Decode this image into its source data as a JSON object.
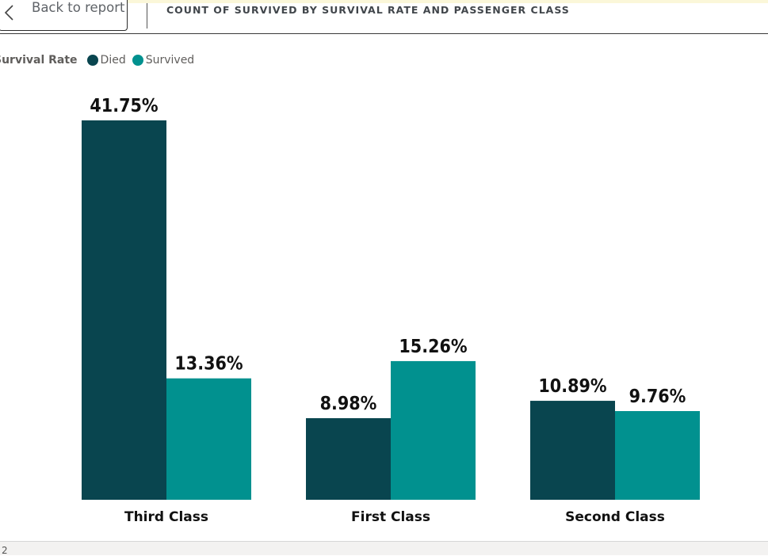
{
  "header": {
    "back_label": "Back to report",
    "title": "COUNT OF SURVIVED BY SURVIVAL RATE AND PASSENGER CLASS"
  },
  "legend": {
    "title": "Survival Rate",
    "items": [
      {
        "label": "Died",
        "color": "#09454f"
      },
      {
        "label": "Survived",
        "color": "#01918f"
      }
    ]
  },
  "chart_data": {
    "type": "bar",
    "title": "COUNT OF SURVIVED BY SURVIVAL RATE AND PASSENGER CLASS",
    "categories": [
      "Third Class",
      "First Class",
      "Second Class"
    ],
    "series": [
      {
        "name": "Died",
        "values": [
          41.75,
          8.98,
          10.89
        ],
        "labels": [
          "41.75%",
          "8.98%",
          "10.89%"
        ],
        "color": "#09454f"
      },
      {
        "name": "Survived",
        "values": [
          13.36,
          15.26,
          9.76
        ],
        "labels": [
          "13.36%",
          "15.26%",
          "9.76%"
        ],
        "color": "#01918f"
      }
    ],
    "ylim": [
      0,
      41.75
    ],
    "legend": "top-left",
    "grid": false,
    "xlabel": "",
    "ylabel": ""
  },
  "footer": {
    "text": "2"
  }
}
